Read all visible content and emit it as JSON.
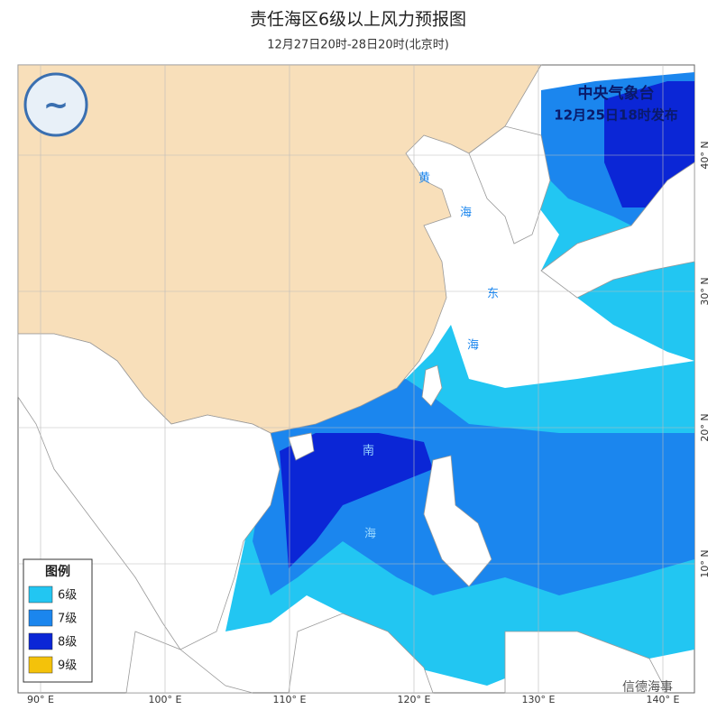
{
  "header": {
    "title": "责任海区6级以上风力预报图",
    "subtitle": "12月27日20时-28日20时(北京时)"
  },
  "issuer": {
    "name": "中央气象台",
    "time": "12月25日18时发布"
  },
  "legend": {
    "title": "图例",
    "items": [
      {
        "label": "6级",
        "color": "#22c6f2"
      },
      {
        "label": "7级",
        "color": "#1b86ee"
      },
      {
        "label": "8级",
        "color": "#0b26d6"
      },
      {
        "label": "9级",
        "color": "#f4c20a"
      }
    ]
  },
  "graticule": {
    "longitudes": [
      {
        "value": 90,
        "label": "90° E"
      },
      {
        "value": 100,
        "label": "100° E"
      },
      {
        "value": 110,
        "label": "110° E"
      },
      {
        "value": 120,
        "label": "120° E"
      },
      {
        "value": 130,
        "label": "130° E"
      },
      {
        "value": 140,
        "label": "140° E"
      }
    ],
    "latitudes": [
      {
        "value": 40,
        "label": "40° N"
      },
      {
        "value": 30,
        "label": "30° N"
      },
      {
        "value": 20,
        "label": "20° N"
      },
      {
        "value": 10,
        "label": "10° N"
      }
    ]
  },
  "sea_labels": [
    "黄",
    "海",
    "东",
    "海",
    "南",
    "海"
  ],
  "watermark": "信德海事"
}
